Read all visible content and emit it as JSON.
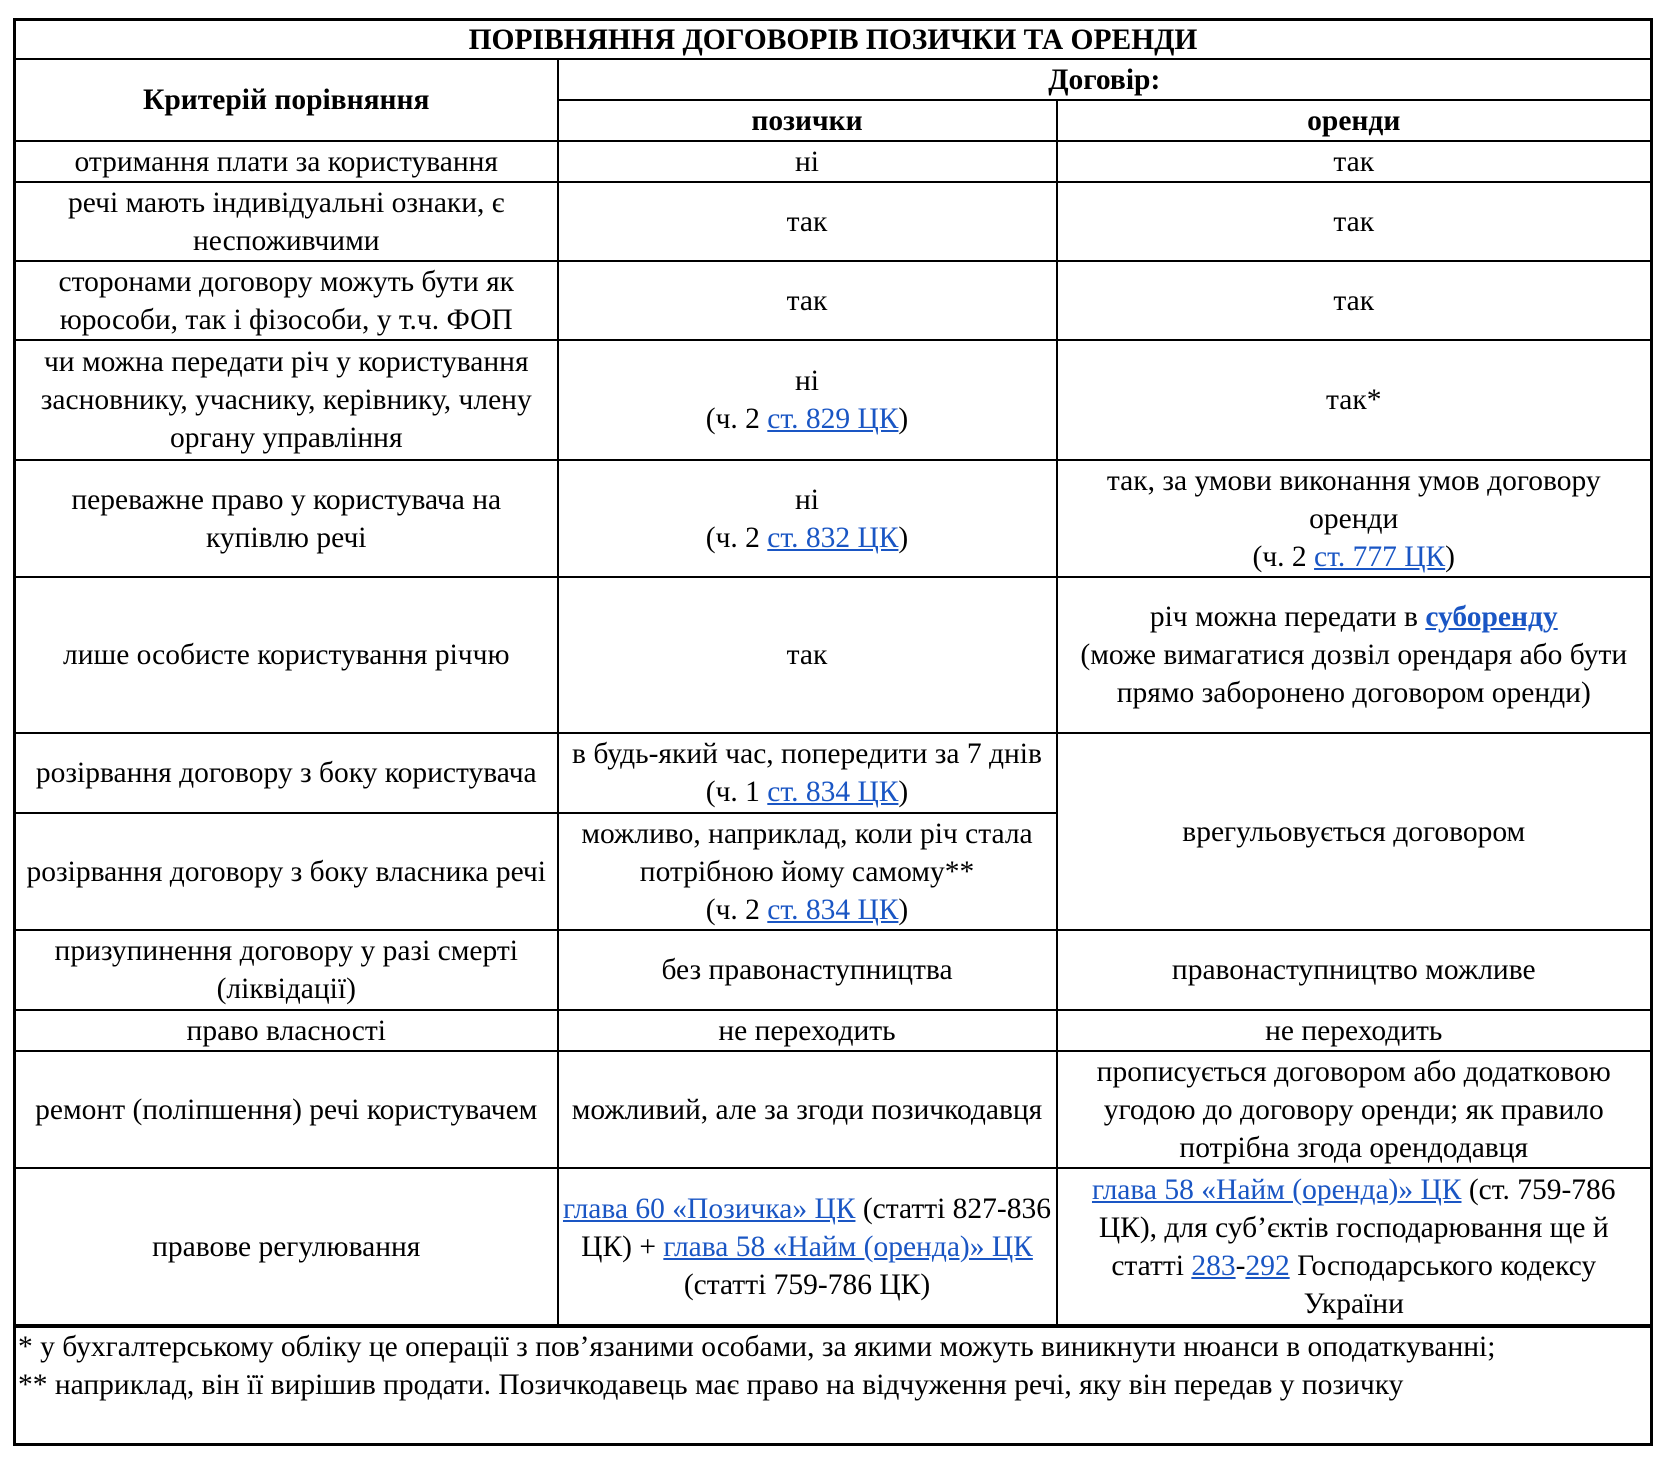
{
  "title": "ПОРІВНЯННЯ ДОГОВОРІВ ПОЗИЧКИ ТА ОРЕНДИ",
  "header": {
    "criterion": "Критерій порівняння",
    "contract": "Договір:",
    "loan": "позички",
    "lease": "оренди"
  },
  "rows": [
    {
      "criterion": "отримання плати за користування",
      "loan": "ні",
      "lease": "так"
    },
    {
      "criterion": "речі мають індивідуальні ознаки, є неспоживчими",
      "loan": "так",
      "lease": "так"
    },
    {
      "criterion": "сторонами договору можуть бути як юрособи, так і фізособи, у т.ч. ФОП",
      "loan": "так",
      "lease": "так"
    },
    {
      "criterion": "чи можна передати річ у користування засновнику, учаснику, керівнику, члену органу управління",
      "loan": "ні",
      "loan_pre": "(ч. 2 ",
      "loan_link": "ст. 829 ЦК",
      "loan_post": ")",
      "lease": "так*"
    },
    {
      "criterion": "переважне право у користувача на купівлю речі",
      "loan": "ні",
      "loan_pre": "(ч. 2 ",
      "loan_link": "ст. 832 ЦК",
      "loan_post": ")",
      "lease": "так, за умови виконання умов договору оренди",
      "lease_pre": "(ч. 2 ",
      "lease_link": "ст. 777 ЦК",
      "lease_post": ")"
    },
    {
      "criterion": "лише особисте користування річчю",
      "loan": "так",
      "lease_pre": "річ можна передати в ",
      "lease_link": "суборенду",
      "lease_post": "(може вимагатися дозвіл орендаря або бути прямо заборонено договором оренди)"
    },
    {
      "criterion": "розірвання договору з боку користувача",
      "loan_pre": "в будь-який час, попередити за 7 днів (ч. 1 ",
      "loan_link": "ст. 834 ЦК",
      "loan_post": ")",
      "lease": "врегульовується договором"
    },
    {
      "criterion": "розірвання договору з боку власника речі",
      "loan": "можливо, наприклад, коли річ стала потрібною йому самому**",
      "loan_pre": "(ч. 2 ",
      "loan_link": "ст. 834 ЦК",
      "loan_post": ")"
    },
    {
      "criterion": "призупинення договору у разі смерті (ліквідації)",
      "loan": "без правонаступництва",
      "lease": "правонаступництво можливе"
    },
    {
      "criterion": "право власності",
      "loan": "не переходить",
      "lease": "не переходить"
    },
    {
      "criterion": "ремонт (поліпшення) речі користувачем",
      "loan": "можливий, але за згоди позичкодавця",
      "lease": "прописується договором або додатковою угодою до договору оренди; як правило потрібна згода орендодавця"
    },
    {
      "criterion": "правове регулювання",
      "loan_link1": "глава 60 «Позичка» ЦК",
      "loan_mid": " (статті 827-836 ЦК) + ",
      "loan_link2": "глава 58 «Найм (оренда)» ЦК",
      "loan_post": " (статті 759-786 ЦК)",
      "lease_link1": "глава 58 «Найм (оренда)» ЦК",
      "lease_mid": " (ст. 759-786 ЦК), для суб’єктів господарювання ще й статті ",
      "lease_link2": "283",
      "lease_dash": "-",
      "lease_link3": "292",
      "lease_post": " Господарського кодексу України"
    }
  ],
  "footnotes": [
    "* у бухгалтерському обліку це операції з пов’язаними особами, за якими можуть виникнути нюанси в оподаткуванні;",
    "** наприклад, він її вирішив продати. Позичкодавець має право на відчуження речі, яку він передав у позичку"
  ],
  "colors": {
    "link": "#1a56c4"
  }
}
